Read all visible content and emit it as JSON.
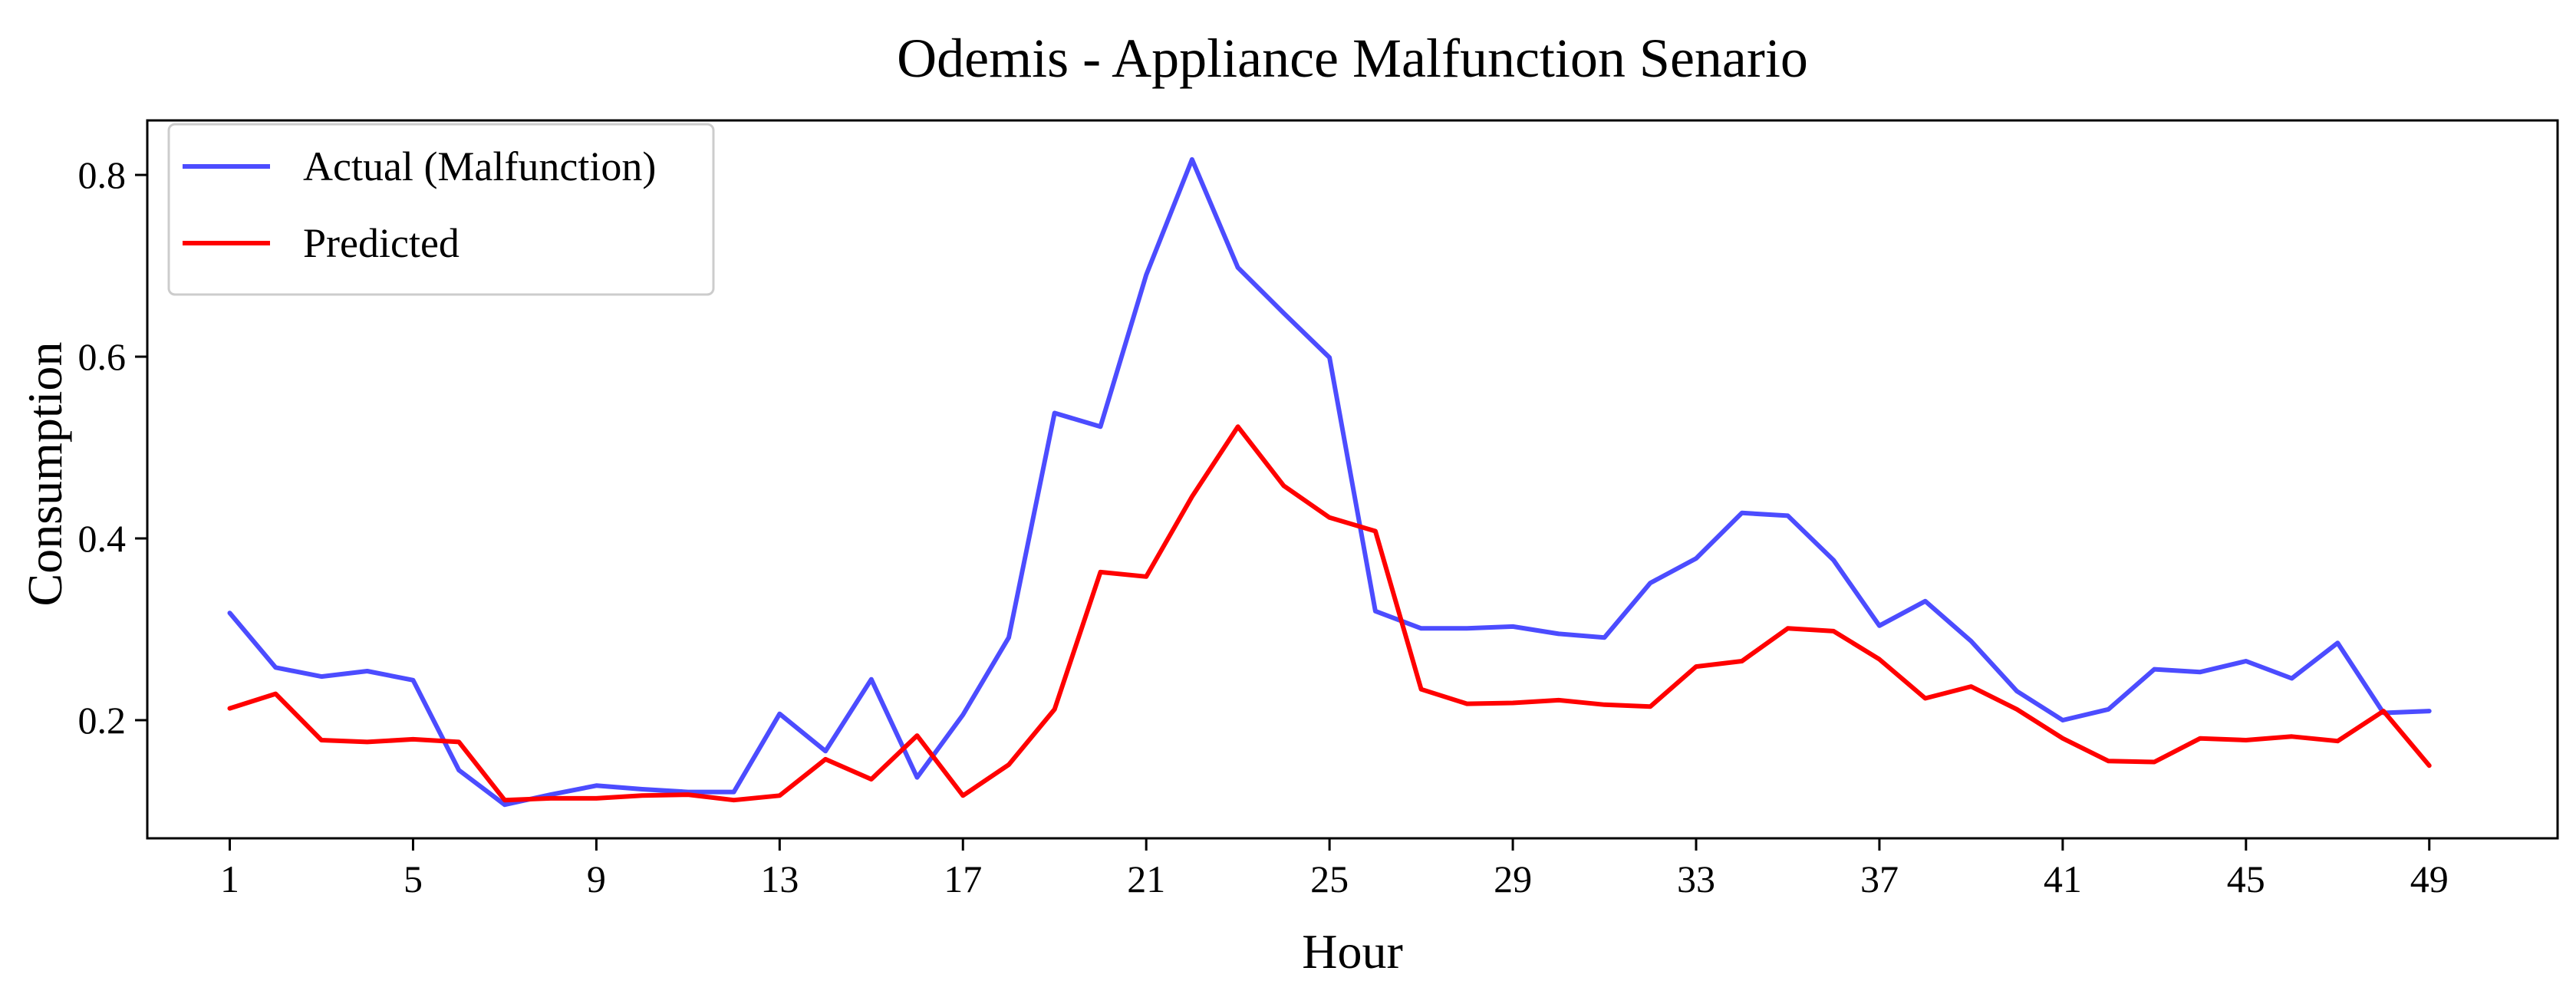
{
  "chart_data": {
    "type": "line",
    "title": "Odemis - Appliance Malfunction Senario",
    "xlabel": "Hour",
    "ylabel": "Consumption",
    "xlim": [
      -0.8,
      51.8
    ],
    "ylim": [
      0.07,
      0.86
    ],
    "xticks": [
      1,
      5,
      9,
      13,
      17,
      21,
      25,
      29,
      33,
      37,
      41,
      45,
      49
    ],
    "yticks": [
      0.2,
      0.4,
      0.6,
      0.8
    ],
    "ytick_labels": [
      "0.2",
      "0.4",
      "0.6",
      "0.8"
    ],
    "grid": false,
    "legend_position": "top-left",
    "x": [
      1,
      2,
      3,
      4,
      5,
      6,
      7,
      8,
      9,
      10,
      11,
      12,
      13,
      14,
      15,
      16,
      17,
      18,
      19,
      20,
      21,
      22,
      23,
      24,
      25,
      26,
      27,
      28,
      29,
      30,
      31,
      32,
      33,
      34,
      35,
      36,
      37,
      38,
      39,
      40,
      41,
      42,
      43,
      44,
      45,
      46,
      47,
      48,
      49
    ],
    "series": [
      {
        "name": "Actual (Malfunction)",
        "color": "#4c4cff",
        "values": [
          0.318,
          0.258,
          0.248,
          0.254,
          0.244,
          0.145,
          0.107,
          0.118,
          0.128,
          0.124,
          0.121,
          0.121,
          0.207,
          0.166,
          0.245,
          0.137,
          0.206,
          0.291,
          0.538,
          0.523,
          0.69,
          0.817,
          0.698,
          0.648,
          0.599,
          0.32,
          0.301,
          0.301,
          0.303,
          0.295,
          0.291,
          0.351,
          0.378,
          0.428,
          0.425,
          0.376,
          0.304,
          0.331,
          0.287,
          0.232,
          0.2,
          0.212,
          0.256,
          0.253,
          0.265,
          0.246,
          0.285,
          0.208,
          0.21
        ]
      },
      {
        "name": "Predicted",
        "color": "#ff0000",
        "values": [
          0.213,
          0.229,
          0.178,
          0.176,
          0.179,
          0.176,
          0.112,
          0.114,
          0.114,
          0.117,
          0.118,
          0.112,
          0.117,
          0.157,
          0.135,
          0.183,
          0.117,
          0.151,
          0.212,
          0.363,
          0.358,
          0.446,
          0.523,
          0.458,
          0.423,
          0.408,
          0.234,
          0.218,
          0.219,
          0.222,
          0.217,
          0.215,
          0.259,
          0.265,
          0.301,
          0.298,
          0.267,
          0.224,
          0.237,
          0.212,
          0.18,
          0.155,
          0.154,
          0.18,
          0.178,
          0.182,
          0.177,
          0.21,
          0.15
        ]
      }
    ]
  }
}
